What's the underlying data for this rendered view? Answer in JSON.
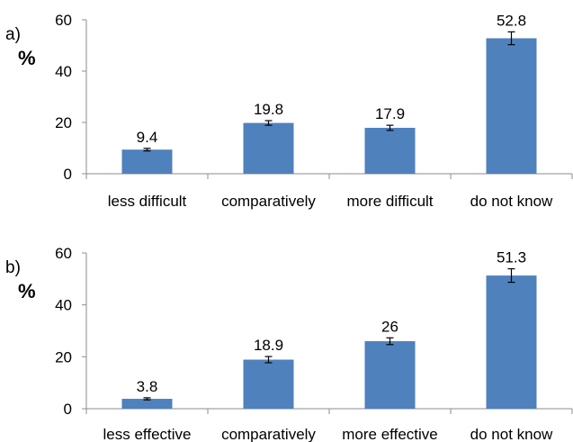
{
  "chart_data": [
    {
      "type": "bar",
      "panel_label": "a)",
      "unit_label": "%",
      "categories": [
        "less difficult",
        "comparatively",
        "more difficult",
        "do not know"
      ],
      "values": [
        9.4,
        19.8,
        17.9,
        52.8
      ],
      "value_labels": [
        "9.4",
        "19.8",
        "17.9",
        "52.8"
      ],
      "errors": [
        0.5,
        0.9,
        1.0,
        2.5
      ],
      "ylim": [
        0,
        60
      ],
      "yticks": [
        0,
        20,
        40,
        60
      ],
      "bar_color": "#4f81bd",
      "grid": false
    },
    {
      "type": "bar",
      "panel_label": "b)",
      "unit_label": "%",
      "categories": [
        "less effective",
        "comparatively",
        "more effective",
        "do not know"
      ],
      "values": [
        3.8,
        18.9,
        26,
        51.3
      ],
      "value_labels": [
        "3.8",
        "18.9",
        "26",
        "51.3"
      ],
      "errors": [
        0.4,
        1.2,
        1.3,
        2.6
      ],
      "ylim": [
        0,
        60
      ],
      "yticks": [
        0,
        20,
        40,
        60
      ],
      "bar_color": "#4f81bd",
      "grid": false
    }
  ]
}
